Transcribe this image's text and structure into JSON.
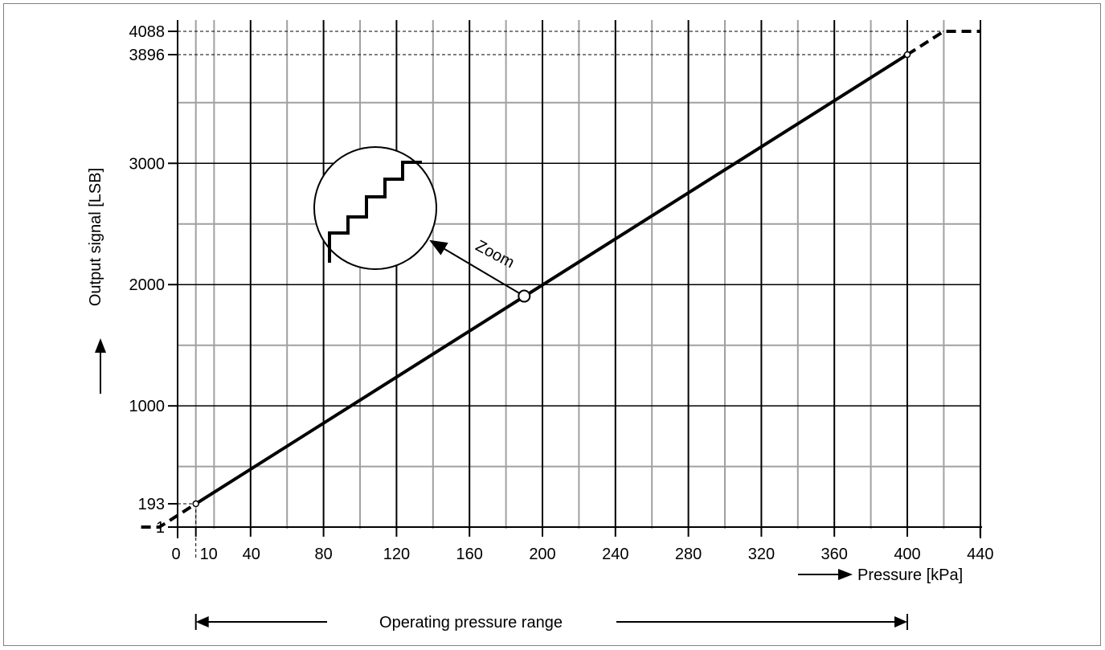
{
  "chart_data": {
    "type": "line",
    "title": "",
    "xlabel": "Pressure [kPa]",
    "ylabel": "Output signal [LSB]",
    "xlim": [
      0,
      440
    ],
    "ylim": [
      1,
      4088
    ],
    "x_ticks": [
      0,
      10,
      40,
      80,
      120,
      160,
      200,
      240,
      280,
      320,
      360,
      400,
      440
    ],
    "y_ticks": [
      1,
      193,
      1000,
      2000,
      3000,
      3896,
      4088
    ],
    "x_tick_labels": [
      "0",
      "10",
      "40",
      "80",
      "120",
      "160",
      "200",
      "240",
      "280",
      "320",
      "360",
      "400",
      "440"
    ],
    "y_tick_labels": [
      "1",
      "193",
      "1000",
      "2000",
      "3000",
      "3896",
      "4088"
    ],
    "x_major_grid": [
      40,
      80,
      120,
      160,
      200,
      240,
      280,
      320,
      360,
      400
    ],
    "x_minor_grid": [
      20,
      60,
      100,
      140,
      180,
      220,
      260,
      300,
      340,
      380,
      420
    ],
    "y_major_grid": [
      1000,
      2000,
      3000
    ],
    "y_minor_grid": [
      500,
      1500,
      2500,
      3500
    ],
    "grid": true,
    "series": [
      {
        "style": "solid",
        "x": [
          10,
          400
        ],
        "y": [
          193,
          3896
        ]
      },
      {
        "style": "dashed",
        "x": [
          -20,
          -10,
          10
        ],
        "y": [
          1,
          1,
          193
        ]
      },
      {
        "style": "dashed",
        "x": [
          400,
          420,
          440
        ],
        "y": [
          3896,
          4088,
          4088
        ]
      }
    ],
    "markers": [
      {
        "x": 10,
        "y": 193,
        "size": "small"
      },
      {
        "x": 190,
        "y": 1905,
        "size": "large"
      },
      {
        "x": 400,
        "y": 3896,
        "size": "small"
      }
    ],
    "annotations": {
      "zoom_label": "Zoom",
      "operating_range_label": "Operating pressure range",
      "operating_range": [
        10,
        400
      ]
    }
  }
}
